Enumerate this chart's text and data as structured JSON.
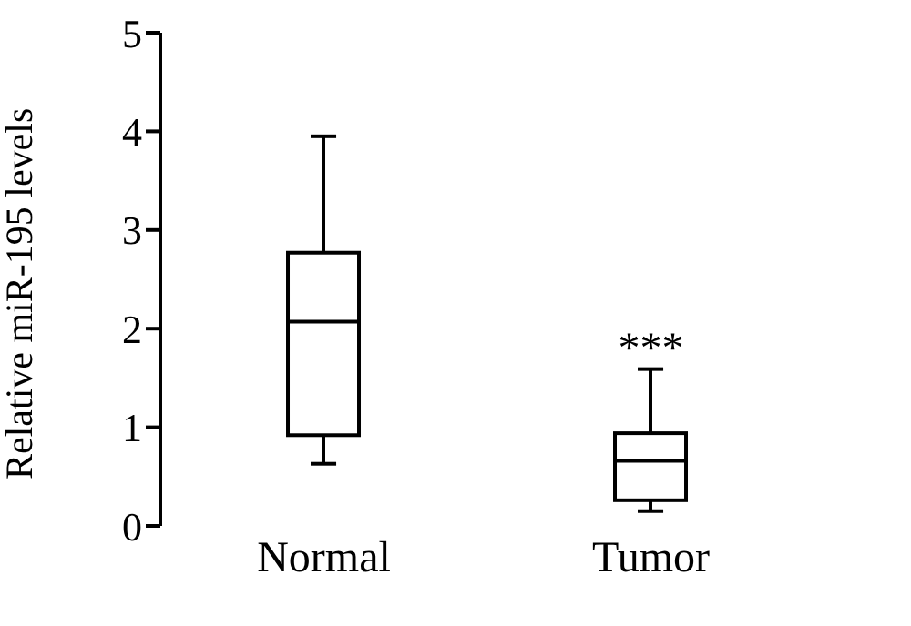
{
  "chart_data": {
    "type": "box",
    "ylabel": "Relative miR-195 levels",
    "categories": [
      "Normal",
      "Tumor"
    ],
    "boxes": [
      {
        "low": 0.63,
        "q1": 0.92,
        "median": 2.07,
        "q3": 2.77,
        "high": 3.95
      },
      {
        "low": 0.15,
        "q1": 0.26,
        "median": 0.66,
        "q3": 0.94,
        "high": 1.59
      }
    ],
    "ylim": [
      0,
      5
    ],
    "yticks": [
      0,
      1,
      2,
      3,
      4,
      5
    ],
    "grid": false,
    "annotations": [
      {
        "text": "***",
        "x": "Tumor",
        "y": 1.59
      }
    ]
  }
}
